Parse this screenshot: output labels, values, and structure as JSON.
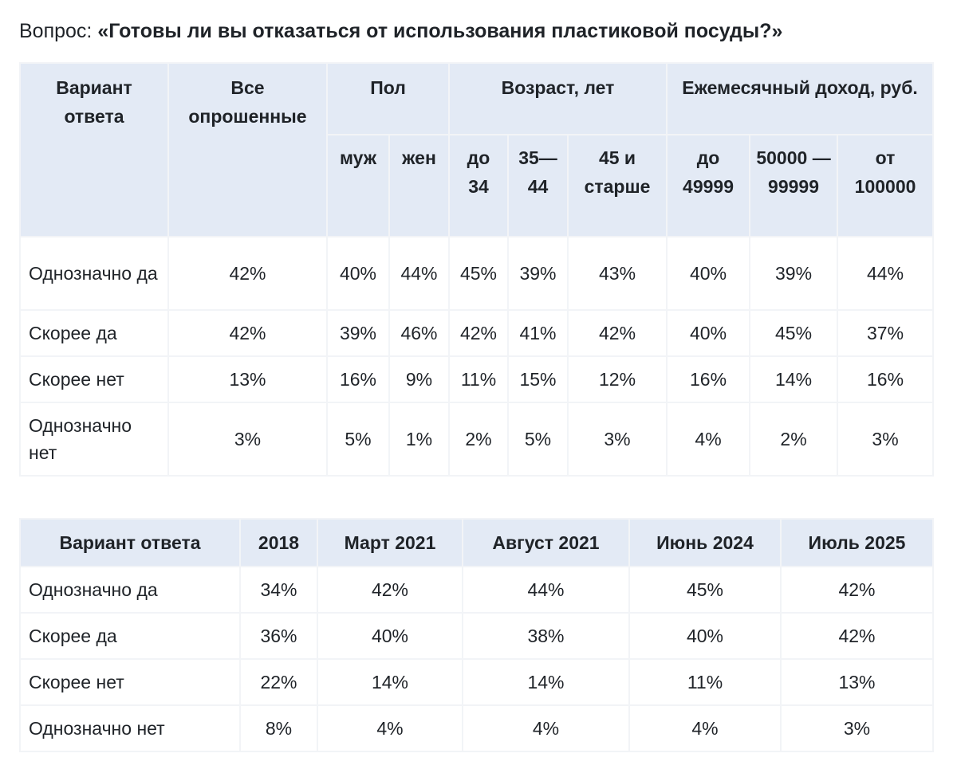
{
  "question": {
    "prefix": "Вопрос: ",
    "title": "«Готовы ли вы отказаться от использования пластиковой посуды?»"
  },
  "table1": {
    "headers": {
      "answer": "Вариант ответа",
      "all": "Все опрошенные",
      "sex": "Пол",
      "age": "Возраст, лет",
      "income": "Ежемесячный доход, руб.",
      "sub": [
        "муж",
        "жен",
        "до 34",
        "35—44",
        "45 и старше",
        "до 49999",
        "50000 — 99999",
        "от 100000"
      ]
    },
    "rows": [
      {
        "label": "Однозначно да",
        "values": [
          "42%",
          "40%",
          "44%",
          "45%",
          "39%",
          "43%",
          "40%",
          "39%",
          "44%"
        ]
      },
      {
        "label": "Скорее да",
        "values": [
          "42%",
          "39%",
          "46%",
          "42%",
          "41%",
          "42%",
          "40%",
          "45%",
          "37%"
        ]
      },
      {
        "label": "Скорее нет",
        "values": [
          "13%",
          "16%",
          "9%",
          "11%",
          "15%",
          "12%",
          "16%",
          "14%",
          "16%"
        ]
      },
      {
        "label": "Однозначно нет",
        "values": [
          "3%",
          "5%",
          "1%",
          "2%",
          "5%",
          "3%",
          "4%",
          "2%",
          "3%"
        ]
      }
    ]
  },
  "table2": {
    "headers": [
      "Вариант ответа",
      "2018",
      "Март 2021",
      "Август 2021",
      "Июнь 2024",
      "Июль 2025"
    ],
    "rows": [
      {
        "label": "Однозначно да",
        "values": [
          "34%",
          "42%",
          "44%",
          "45%",
          "42%"
        ]
      },
      {
        "label": "Скорее да",
        "values": [
          "36%",
          "40%",
          "38%",
          "40%",
          "42%"
        ]
      },
      {
        "label": "Скорее нет",
        "values": [
          "22%",
          "14%",
          "14%",
          "11%",
          "13%"
        ]
      },
      {
        "label": "Однозначно нет",
        "values": [
          "8%",
          "4%",
          "4%",
          "4%",
          "3%"
        ]
      }
    ]
  },
  "colors": {
    "header_bg": "#e3eaf5",
    "border": "#f2f4f7",
    "text": "#1f2328"
  }
}
